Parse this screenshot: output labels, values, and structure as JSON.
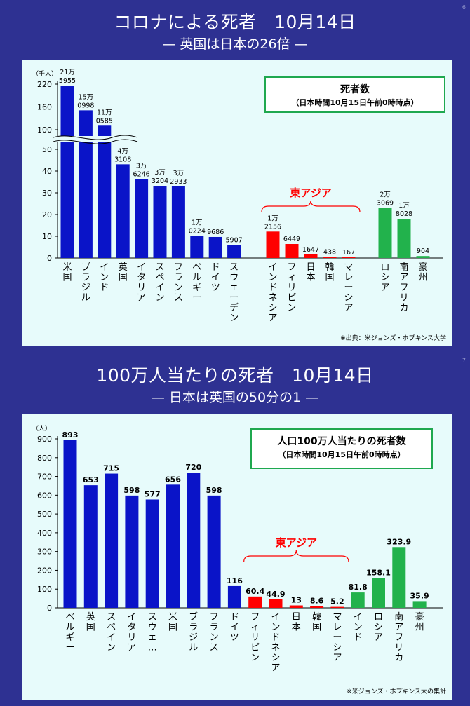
{
  "slides": [
    {
      "title": "コロナによる死者　10月14日",
      "subtitle": "— 英国は日本の26倍 —",
      "page": "6",
      "source": "※出典：米ジョンズ・ホプキンス大学",
      "legend_box": {
        "line1": "死者数",
        "line2": "（日本時間10月15日午前0時時点）"
      },
      "group_label": "東アジア"
    },
    {
      "title": "100万人当たりの死者　10月14日",
      "subtitle": "— 日本は英国の50分の1 —",
      "page": "7",
      "source": "※米ジョンズ・ホプキンス大の集計",
      "legend_box": {
        "line1": "人口100万人当たりの死者数",
        "line2": "（日本時間10月15日午前0時時点）"
      },
      "group_label": "東アジア"
    }
  ],
  "chart_data": [
    {
      "type": "bar",
      "unit_label": "（千人）",
      "y_ticks": [
        "0",
        "10",
        "20",
        "30",
        "40",
        "50",
        "100",
        "160",
        "220"
      ],
      "axis_break": true,
      "colors": {
        "blue": "#0a14c8",
        "red": "#ff0000",
        "green": "#22b24c"
      },
      "categories": [
        "米国",
        "ブラジル",
        "インド",
        "英国",
        "イタリア",
        "スペイン",
        "フランス",
        "ベルギー",
        "ドイツ",
        "スウェーデン",
        "インドネシア",
        "フィリピン",
        "日本",
        "韓国",
        "マレーシア",
        "ロシア",
        "南アフリカ",
        "豪州"
      ],
      "values": [
        215955,
        150998,
        110585,
        43108,
        36246,
        33204,
        32933,
        10224,
        9686,
        5907,
        12156,
        6449,
        1647,
        438,
        167,
        23069,
        18028,
        904
      ],
      "value_labels": [
        [
          "21万",
          "5955"
        ],
        [
          "15万",
          "0998"
        ],
        [
          "11万",
          "0585"
        ],
        [
          "4万",
          "3108"
        ],
        [
          "3万",
          "6246"
        ],
        [
          "3万",
          "3204"
        ],
        [
          "3万",
          "2933"
        ],
        [
          "1万",
          "0224"
        ],
        [
          "9686"
        ],
        [
          "5907"
        ],
        [
          "1万",
          "2156"
        ],
        [
          "6449"
        ],
        [
          "1647"
        ],
        [
          "438"
        ],
        [
          "167"
        ],
        [
          "2万",
          "3069"
        ],
        [
          "1万",
          "8028"
        ],
        [
          "904"
        ]
      ],
      "series_color": [
        "blue",
        "blue",
        "blue",
        "blue",
        "blue",
        "blue",
        "blue",
        "blue",
        "blue",
        "blue",
        "red",
        "red",
        "red",
        "red",
        "red",
        "green",
        "green",
        "green"
      ]
    },
    {
      "type": "bar",
      "unit_label": "（人）",
      "y_ticks": [
        "0",
        "100",
        "200",
        "300",
        "400",
        "500",
        "600",
        "700",
        "800",
        "900"
      ],
      "ylim": [
        0,
        900
      ],
      "colors": {
        "blue": "#0a14c8",
        "red": "#ff0000",
        "green": "#22b24c"
      },
      "categories": [
        "ベルギー",
        "英国",
        "スペイン",
        "イタリア",
        "スウェ…",
        "米国",
        "ブラジル",
        "フランス",
        "ドイツ",
        "フィリピン",
        "インドネシア",
        "日本",
        "韓国",
        "マレーシア",
        "インド",
        "ロシア",
        "南アフリカ",
        "豪州"
      ],
      "values": [
        893,
        653,
        715,
        598,
        577,
        656,
        720,
        598,
        116,
        60.4,
        44.9,
        13,
        8.6,
        5.2,
        81.8,
        158.1,
        323.9,
        35.9
      ],
      "value_labels": [
        [
          "893"
        ],
        [
          "653"
        ],
        [
          "715"
        ],
        [
          "598"
        ],
        [
          "577"
        ],
        [
          "656"
        ],
        [
          "720"
        ],
        [
          "598"
        ],
        [
          "116"
        ],
        [
          "60.4"
        ],
        [
          "44.9"
        ],
        [
          "13"
        ],
        [
          "8.6"
        ],
        [
          "5.2"
        ],
        [
          "81.8"
        ],
        [
          "158.1"
        ],
        [
          "323.9"
        ],
        [
          "35.9"
        ]
      ],
      "series_color": [
        "blue",
        "blue",
        "blue",
        "blue",
        "blue",
        "blue",
        "blue",
        "blue",
        "blue",
        "red",
        "red",
        "red",
        "red",
        "red",
        "green",
        "green",
        "green",
        "green"
      ]
    }
  ]
}
